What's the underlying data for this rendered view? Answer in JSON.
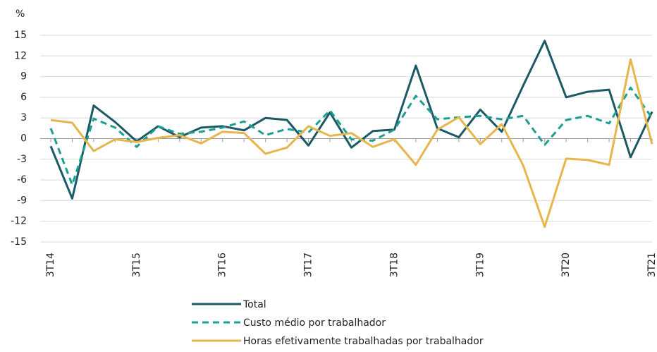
{
  "chart_data": {
    "type": "line",
    "y_unit": "%",
    "categories": [
      "3T14",
      null,
      null,
      null,
      "3T15",
      null,
      null,
      null,
      "3T16",
      null,
      null,
      null,
      "3T17",
      null,
      null,
      null,
      "3T18",
      null,
      null,
      null,
      "3T19",
      null,
      null,
      null,
      "3T20",
      null,
      null,
      null,
      "3T21"
    ],
    "series": [
      {
        "name": "Total",
        "color": "#1b5a64",
        "dash": false,
        "values": [
          -1.1,
          -8.7,
          4.8,
          2.4,
          -0.4,
          1.8,
          0.2,
          1.6,
          1.8,
          1.2,
          3.0,
          2.7,
          -1.0,
          3.8,
          -1.3,
          1.1,
          1.3,
          10.6,
          1.5,
          0.2,
          4.2,
          1.0,
          7.7,
          14.2,
          6.0,
          6.8,
          7.1,
          -2.7,
          3.9
        ]
      },
      {
        "name": "Custo médio por trabalhador",
        "color": "#1aa091",
        "dash": true,
        "values": [
          1.5,
          -6.7,
          2.9,
          1.6,
          -1.2,
          1.8,
          0.7,
          1.0,
          1.6,
          2.5,
          0.5,
          1.4,
          0.9,
          4.1,
          -0.1,
          -0.3,
          1.3,
          6.2,
          2.8,
          3.1,
          3.3,
          2.8,
          3.3,
          -0.9,
          2.7,
          3.3,
          2.2,
          7.4,
          3.0
        ]
      },
      {
        "name": "Horas efetivamente trabalhadas por trabalhador",
        "color": "#e8b54d",
        "dash": false,
        "values": [
          2.7,
          2.3,
          -1.8,
          -0.1,
          -0.5,
          0.1,
          0.5,
          -0.7,
          1.0,
          0.8,
          -2.2,
          -1.3,
          1.8,
          0.4,
          0.8,
          -1.2,
          -0.1,
          -3.8,
          1.3,
          3.1,
          -0.8,
          2.1,
          -3.9,
          -12.8,
          -2.9,
          -3.1,
          -3.8,
          11.5,
          -0.8
        ]
      }
    ],
    "ylim": [
      -15,
      15
    ],
    "yticks": [
      -15,
      -12,
      -9,
      -6,
      -3,
      0,
      3,
      6,
      9,
      12,
      15
    ],
    "grid": true
  }
}
